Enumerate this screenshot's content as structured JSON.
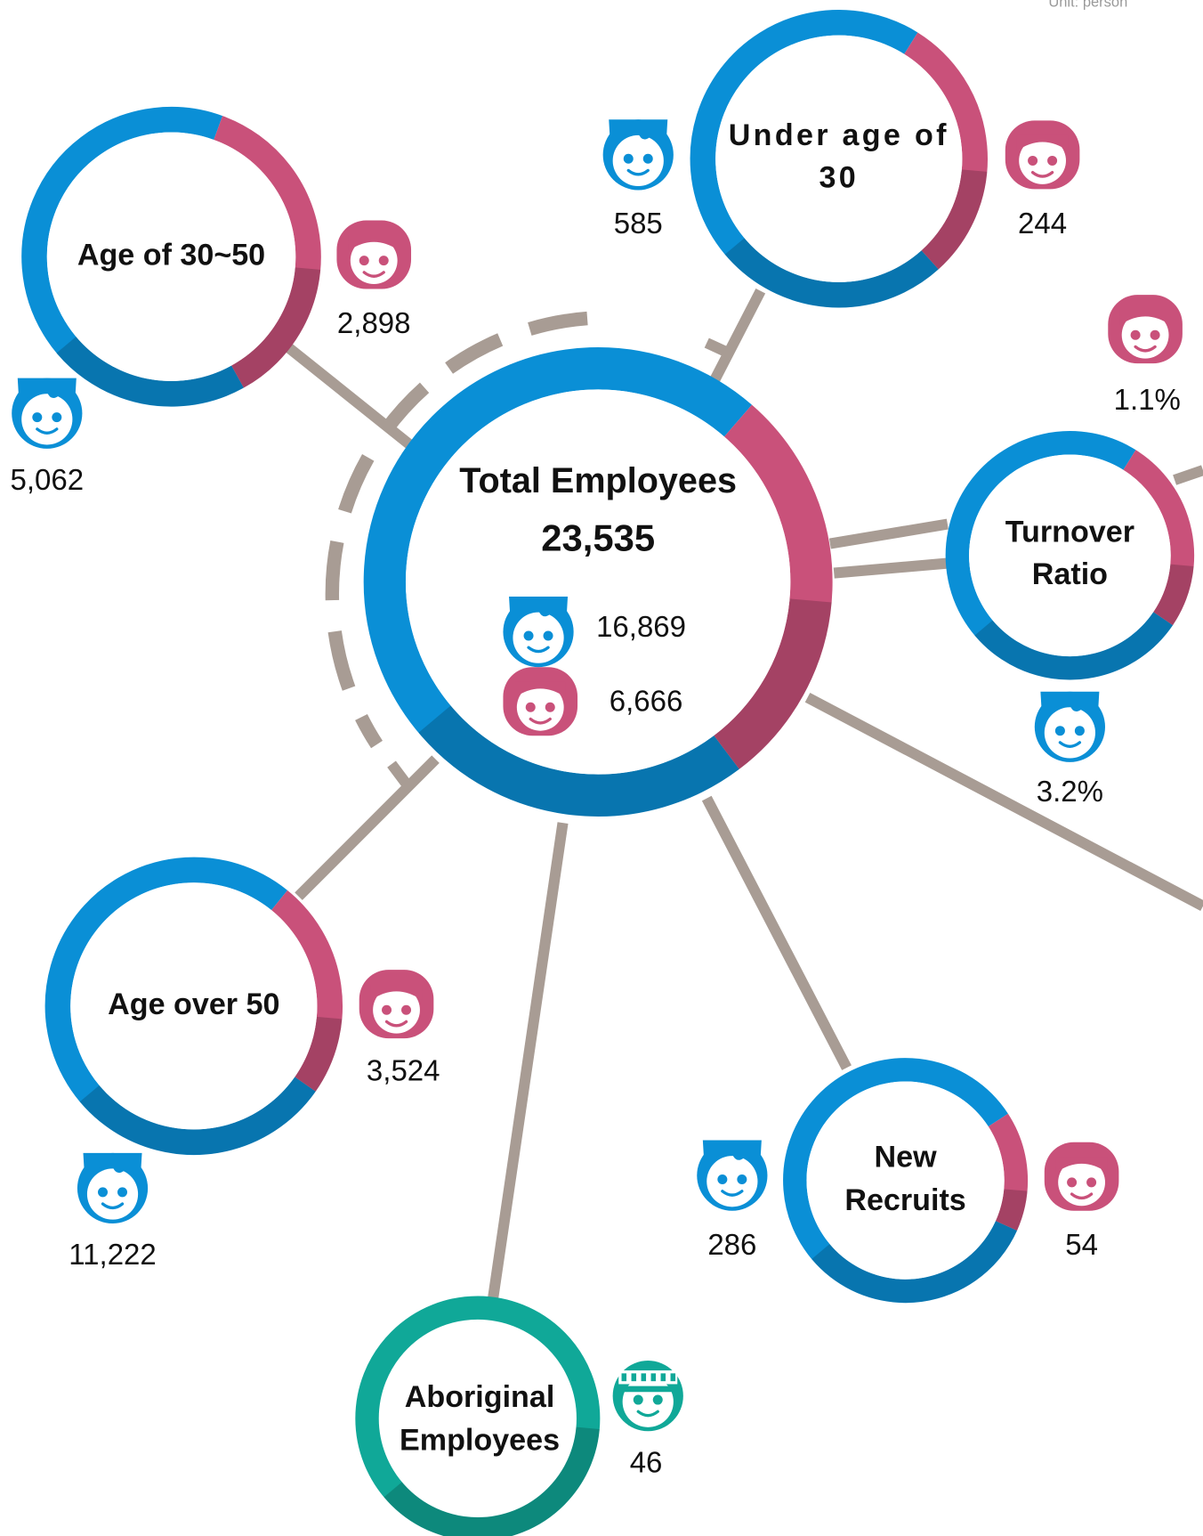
{
  "unit_note": "Unit: person",
  "center": {
    "title": "Total Employees",
    "total": {
      "value": 23535,
      "label": "23,535"
    },
    "male": {
      "value": 16869,
      "label": "16,869"
    },
    "female": {
      "value": 6666,
      "label": "6,666"
    }
  },
  "nodes": [
    {
      "label_lines": [
        "Age of 30~50"
      ],
      "male": {
        "value": 5062,
        "label": "5,062"
      },
      "female": {
        "value": 2898,
        "label": "2,898"
      }
    },
    {
      "label_lines": [
        "Under age of",
        "30"
      ],
      "male": {
        "value": 585,
        "label": "585"
      },
      "female": {
        "value": 244,
        "label": "244"
      }
    },
    {
      "label_lines": [
        "Turnover",
        "Ratio"
      ],
      "male": {
        "value": 3.2,
        "label": "3.2%"
      },
      "female": {
        "value": 1.1,
        "label": "1.1%"
      }
    },
    {
      "label_lines": [
        "Age over 50"
      ],
      "male": {
        "value": 11222,
        "label": "11,222"
      },
      "female": {
        "value": 3524,
        "label": "3,524"
      }
    },
    {
      "label_lines": [
        "New",
        "Recruits"
      ],
      "male": {
        "value": 286,
        "label": "286"
      },
      "female": {
        "value": 54,
        "label": "54"
      }
    }
  ],
  "aboriginal": {
    "label_lines": [
      "Aboriginal",
      "Employees"
    ],
    "count": {
      "value": 46,
      "label": "46"
    }
  }
}
